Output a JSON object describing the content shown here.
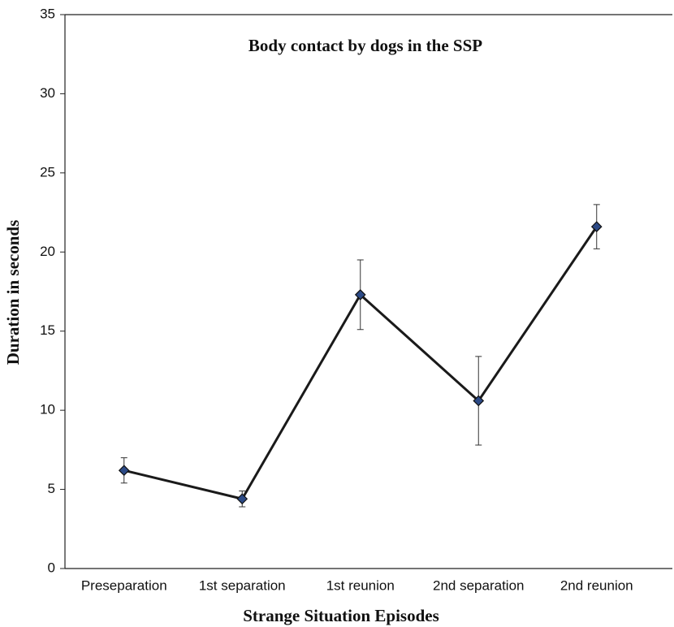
{
  "chart_data": {
    "type": "line",
    "title": "Body contact by dogs in the SSP",
    "xlabel": "Strange Situation Episodes",
    "ylabel": "Duration in seconds",
    "categories": [
      "Preseparation",
      "1st separation",
      "1st reunion",
      "2nd separation",
      "2nd reunion"
    ],
    "series": [
      {
        "color": "#1a1a1a",
        "marker_color": "#2c4a86",
        "values": [
          6.2,
          4.4,
          17.3,
          10.6,
          21.6
        ],
        "errors": [
          0.8,
          0.5,
          2.2,
          2.8,
          1.4
        ]
      }
    ],
    "ylim": [
      0,
      35
    ],
    "yticks": [
      0,
      5,
      10,
      15,
      20,
      25,
      30,
      35
    ]
  }
}
